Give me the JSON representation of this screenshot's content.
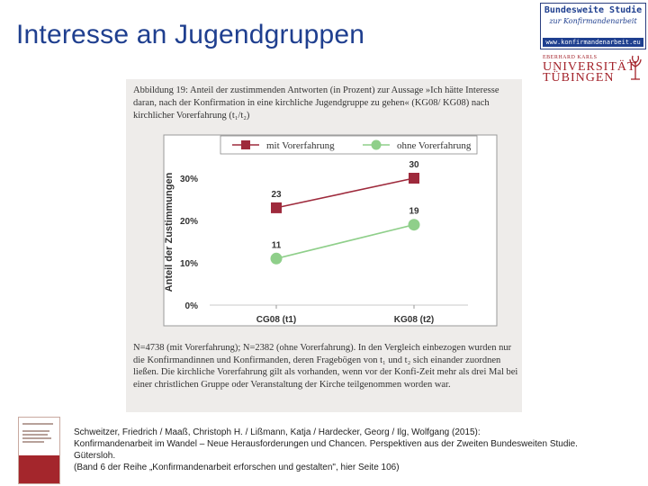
{
  "slide": {
    "title": "Interesse an Jugendgruppen"
  },
  "logos": {
    "study_line1": "Bundesweite Studie",
    "study_line2": "zur Konfirmandenarbeit",
    "study_url": "www.konfirmandenarbeit.eu",
    "uni_small": "EBERHARD KARLS",
    "uni_line1": "UNIVERSITÄT",
    "uni_line2": "TÜBINGEN",
    "uni_color": "#a3222a",
    "study_color": "#1f3f8f"
  },
  "figure": {
    "caption": "Abbildung 19: Anteil der zustimmenden Antworten (in Prozent) zur Aussage »Ich hätte Interesse daran, nach der Konfirmation in eine kirchliche Jugendgruppe zu gehen« (KG08/ KG08) nach kirchlicher Vorerfahrung (t₁/t₂)",
    "note": "N=4738 (mit Vorerfahrung); N=2382 (ohne Vorerfahrung). In den Vergleich einbezogen wurden nur die Konfirmandinnen und Konfirmanden, deren Fragebögen von t₁ und t₂ sich einander zuordnen ließen. Die kirchliche Vorerfahrung gilt als vorhanden, wenn vor der Konfi-Zeit mehr als drei Mal bei einer christlichen Gruppe oder Veranstaltung der Kirche teilgenommen worden war."
  },
  "chart_data": {
    "type": "line",
    "categories": [
      "CG08 (t1)",
      "KG08 (t2)"
    ],
    "ylabel": "Anteil der Zustimmungen",
    "xlabel": "",
    "ylim": [
      0,
      30
    ],
    "yticks": [
      "0%",
      "10%",
      "20%",
      "30%"
    ],
    "ytick_values": [
      0,
      10,
      20,
      30
    ],
    "grid": false,
    "legend_position": "top",
    "series": [
      {
        "name": "mit Vorerfahrung",
        "values": [
          23,
          30
        ],
        "labels": [
          "23",
          "30"
        ],
        "color": "#9e2a3c",
        "marker": "square"
      },
      {
        "name": "ohne Vorerfahrung",
        "values": [
          11,
          19
        ],
        "labels": [
          "11",
          "19"
        ],
        "color": "#8fcf8a",
        "marker": "circle"
      }
    ]
  },
  "reference": {
    "line1": "Schweitzer, Friedrich / Maaß, Christoph H. / Lißmann, Katja / Hardecker, Georg / Ilg, Wolfgang (2015):",
    "line2": "Konfirmandenarbeit im Wandel – Neue Herausforderungen und Chancen. Perspektiven aus der Zweiten Bundesweiten Studie.",
    "line3": "Gütersloh.",
    "line4": "(Band 6 der Reihe „Konfirmandenarbeit erforschen und gestalten\", hier Seite 106)"
  }
}
